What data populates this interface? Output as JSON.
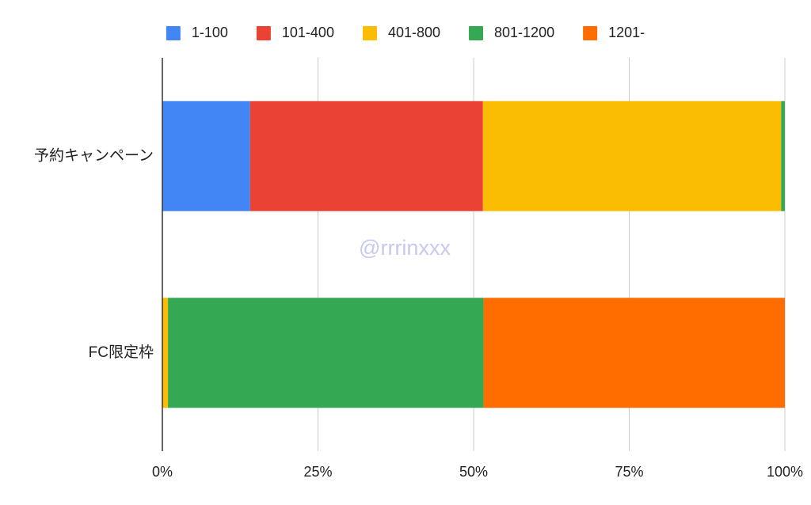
{
  "chart_data": {
    "type": "bar",
    "orientation": "horizontal",
    "stacked": "percent",
    "categories": [
      "予約キャンペーン",
      "FC限定枠"
    ],
    "series": [
      {
        "name": "1-100",
        "color": "#4285F4",
        "values": [
          14.1,
          0
        ]
      },
      {
        "name": "101-400",
        "color": "#EA4335",
        "values": [
          37.4,
          0
        ]
      },
      {
        "name": "401-800",
        "color": "#FBBC04",
        "values": [
          47.9,
          0.9
        ]
      },
      {
        "name": "801-1200",
        "color": "#34A853",
        "values": [
          0.6,
          50.7
        ]
      },
      {
        "name": "1201-",
        "color": "#FF6D01",
        "values": [
          0,
          48.4
        ]
      }
    ],
    "x_ticks": [
      "0%",
      "25%",
      "50%",
      "75%",
      "100%"
    ],
    "x_tick_values": [
      0,
      25,
      50,
      75,
      100
    ],
    "xlim": [
      0,
      100
    ],
    "grid": "vertical",
    "legend_position": "top",
    "watermark": "@rrrinxxx"
  }
}
